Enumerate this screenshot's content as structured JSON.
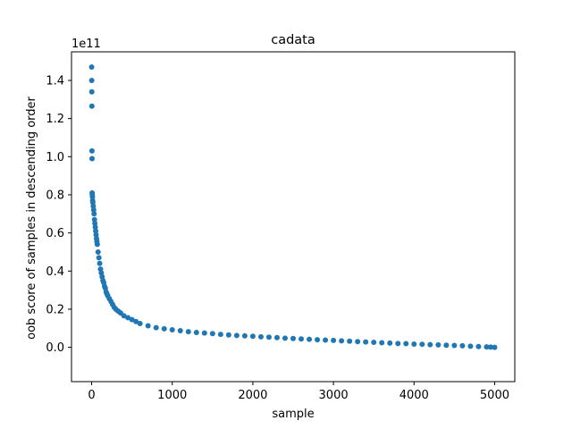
{
  "chart_data": {
    "type": "scatter",
    "title": "cadata",
    "xlabel": "sample",
    "ylabel": "oob score of samples in descending order",
    "y_offset_label": "1e11",
    "xlim": [
      -250,
      5250
    ],
    "ylim": [
      -0.18,
      1.55
    ],
    "x_ticks": [
      0,
      1000,
      2000,
      3000,
      4000,
      5000
    ],
    "x_tick_labels": [
      "0",
      "1000",
      "2000",
      "3000",
      "4000",
      "5000"
    ],
    "y_ticks": [
      0.0,
      0.2,
      0.4,
      0.6,
      0.8,
      1.0,
      1.2,
      1.4
    ],
    "y_tick_labels": [
      "0.0",
      "0.2",
      "0.4",
      "0.6",
      "0.8",
      "1.0",
      "1.2",
      "1.4"
    ],
    "grid": false,
    "legend": "none",
    "marker_color": "#1f77b4",
    "series": [
      {
        "x": [
          0,
          1,
          2,
          3,
          4,
          5,
          6,
          8,
          10,
          12,
          15,
          20,
          25,
          30,
          35,
          40,
          45,
          50,
          55,
          60,
          65,
          70,
          80,
          90,
          100,
          110,
          120,
          130,
          140,
          150,
          160,
          170,
          180,
          190,
          200,
          220,
          240,
          260,
          280,
          300,
          330,
          360,
          400,
          450,
          500,
          550,
          600,
          700,
          800,
          900,
          1000,
          1100,
          1200,
          1300,
          1400,
          1500,
          1600,
          1700,
          1800,
          1900,
          2000,
          2100,
          2200,
          2300,
          2400,
          2500,
          2600,
          2700,
          2800,
          2900,
          3000,
          3100,
          3200,
          3300,
          3400,
          3500,
          3600,
          3700,
          3800,
          3900,
          4000,
          4100,
          4200,
          4300,
          4400,
          4500,
          4600,
          4700,
          4800,
          4900,
          4950,
          5000
        ],
        "y": [
          1.47,
          1.4,
          1.34,
          1.265,
          1.03,
          0.99,
          0.81,
          0.8,
          0.79,
          0.77,
          0.76,
          0.74,
          0.72,
          0.7,
          0.67,
          0.65,
          0.63,
          0.61,
          0.59,
          0.57,
          0.555,
          0.54,
          0.5,
          0.47,
          0.44,
          0.41,
          0.39,
          0.37,
          0.35,
          0.34,
          0.32,
          0.31,
          0.29,
          0.28,
          0.27,
          0.255,
          0.24,
          0.225,
          0.21,
          0.2,
          0.19,
          0.18,
          0.165,
          0.155,
          0.145,
          0.135,
          0.125,
          0.113,
          0.103,
          0.097,
          0.092,
          0.087,
          0.082,
          0.078,
          0.075,
          0.072,
          0.068,
          0.065,
          0.062,
          0.06,
          0.058,
          0.055,
          0.053,
          0.051,
          0.048,
          0.046,
          0.044,
          0.042,
          0.04,
          0.038,
          0.036,
          0.034,
          0.032,
          0.03,
          0.028,
          0.026,
          0.024,
          0.022,
          0.02,
          0.019,
          0.017,
          0.016,
          0.014,
          0.013,
          0.011,
          0.01,
          0.008,
          0.006,
          0.004,
          0.002,
          0.001,
          0.0
        ]
      }
    ]
  }
}
